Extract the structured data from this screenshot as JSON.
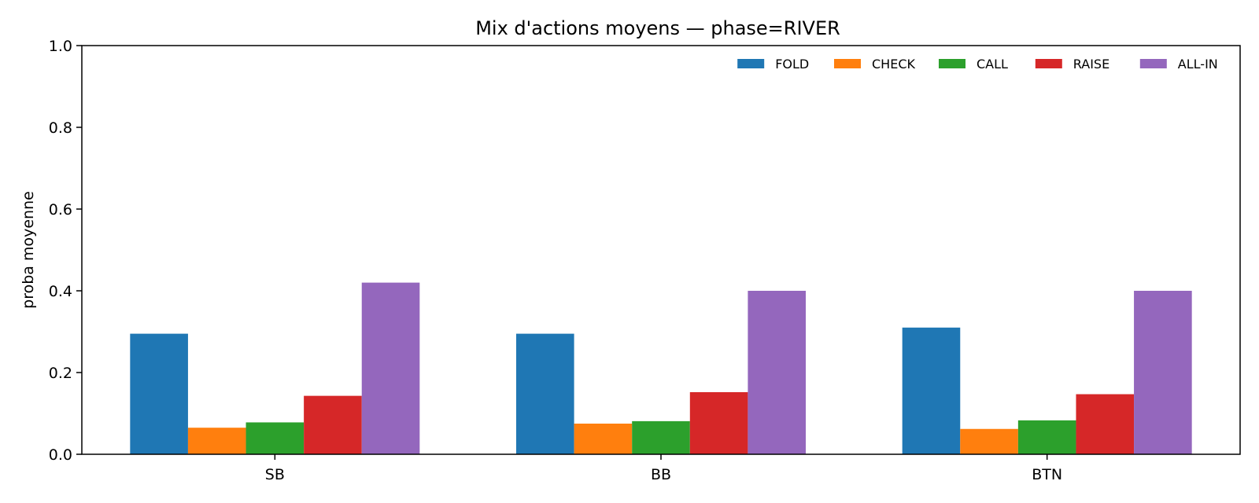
{
  "chart_data": {
    "type": "bar",
    "title": "Mix d'actions moyens — phase=RIVER",
    "xlabel": "",
    "ylabel": "proba moyenne",
    "ylim": [
      0,
      1.0
    ],
    "yticks": [
      "0.0",
      "0.2",
      "0.4",
      "0.6",
      "0.8",
      "1.0"
    ],
    "categories": [
      "SB",
      "BB",
      "BTN"
    ],
    "legend_position": "top-right",
    "grid": false,
    "series": [
      {
        "name": "FOLD",
        "color": "#1f77b4",
        "values": [
          0.295,
          0.295,
          0.31
        ]
      },
      {
        "name": "CHECK",
        "color": "#ff7f0e",
        "values": [
          0.065,
          0.075,
          0.062
        ]
      },
      {
        "name": "CALL",
        "color": "#2ca02c",
        "values": [
          0.078,
          0.081,
          0.083
        ]
      },
      {
        "name": "RAISE",
        "color": "#d62728",
        "values": [
          0.143,
          0.152,
          0.147
        ]
      },
      {
        "name": "ALL-IN",
        "color": "#9467bd",
        "values": [
          0.42,
          0.4,
          0.4
        ]
      }
    ]
  }
}
